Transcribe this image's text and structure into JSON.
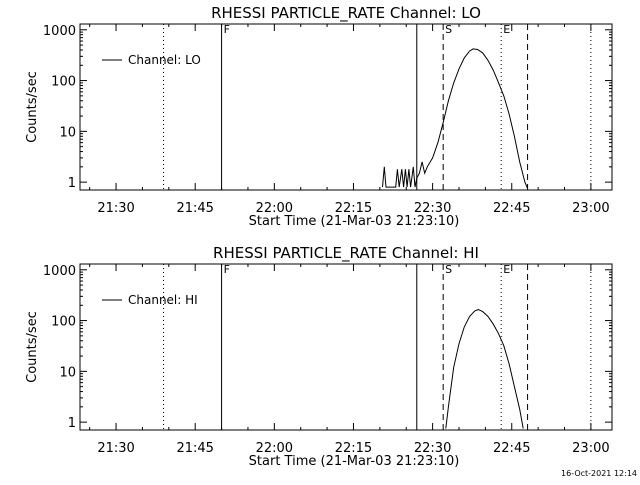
{
  "timestamp": "16-Oct-2021 12:14",
  "chart_data": [
    {
      "type": "line",
      "title": "RHESSI PARTICLE_RATE Channel: LO",
      "xlabel": "Start Time (21-Mar-03 21:23:10)",
      "ylabel": "Counts/sec",
      "x_range": [
        "21:23:10",
        "23:04:00"
      ],
      "ylim": [
        0.7,
        1300
      ],
      "y_scale": "log",
      "yticks": [
        1,
        10,
        100,
        1000
      ],
      "ytick_labels": [
        "1",
        "10",
        "100",
        "1000"
      ],
      "xticks": [
        "21:30",
        "21:45",
        "22:00",
        "22:15",
        "22:30",
        "22:45",
        "23:00"
      ],
      "legend": {
        "label": "Channel: LO",
        "position": "top-left"
      },
      "vlines": [
        {
          "time": "21:39:00",
          "style": "dotted",
          "label": ""
        },
        {
          "time": "21:50:00",
          "style": "solid",
          "label": "F"
        },
        {
          "time": "22:27:00",
          "style": "solid",
          "label": ""
        },
        {
          "time": "22:32:00",
          "style": "dashed",
          "label": "S"
        },
        {
          "time": "22:43:00",
          "style": "dotted",
          "label": "E"
        },
        {
          "time": "22:48:00",
          "style": "dashed",
          "label": ""
        },
        {
          "time": "23:00:00",
          "style": "dotted",
          "label": ""
        }
      ],
      "series": [
        {
          "name": "Channel: LO",
          "points": [
            [
              "22:20:30",
              0.8
            ],
            [
              "22:20:50",
              2.0
            ],
            [
              "22:21:10",
              0.8
            ],
            [
              "22:23:00",
              0.8
            ],
            [
              "22:23:20",
              1.8
            ],
            [
              "22:23:40",
              0.8
            ],
            [
              "22:24:10",
              1.8
            ],
            [
              "22:24:30",
              0.8
            ],
            [
              "22:24:50",
              1.8
            ],
            [
              "22:25:10",
              0.8
            ],
            [
              "22:25:30",
              1.8
            ],
            [
              "22:25:50",
              0.8
            ],
            [
              "22:26:20",
              2.0
            ],
            [
              "22:26:40",
              0.8
            ],
            [
              "22:27:00",
              1.2
            ],
            [
              "22:27:30",
              1.5
            ],
            [
              "22:28:00",
              2.5
            ],
            [
              "22:28:30",
              1.5
            ],
            [
              "22:29:00",
              2.0
            ],
            [
              "22:30:00",
              3.0
            ],
            [
              "22:31:00",
              6
            ],
            [
              "22:32:00",
              15
            ],
            [
              "22:33:00",
              40
            ],
            [
              "22:34:00",
              90
            ],
            [
              "22:35:00",
              170
            ],
            [
              "22:36:00",
              280
            ],
            [
              "22:37:00",
              380
            ],
            [
              "22:37:40",
              420
            ],
            [
              "22:38:30",
              410
            ],
            [
              "22:39:30",
              350
            ],
            [
              "22:40:30",
              250
            ],
            [
              "22:41:30",
              160
            ],
            [
              "22:42:30",
              90
            ],
            [
              "22:43:30",
              50
            ],
            [
              "22:44:30",
              22
            ],
            [
              "22:45:30",
              8
            ],
            [
              "22:46:30",
              2.5
            ],
            [
              "22:47:30",
              1.0
            ],
            [
              "22:48:00",
              0.75
            ]
          ]
        }
      ]
    },
    {
      "type": "line",
      "title": "RHESSI PARTICLE_RATE Channel: HI",
      "xlabel": "Start Time (21-Mar-03 21:23:10)",
      "ylabel": "Counts/sec",
      "x_range": [
        "21:23:10",
        "23:04:00"
      ],
      "ylim": [
        0.7,
        1300
      ],
      "y_scale": "log",
      "yticks": [
        1,
        10,
        100,
        1000
      ],
      "ytick_labels": [
        "1",
        "10",
        "100",
        "1000"
      ],
      "xticks": [
        "21:30",
        "21:45",
        "22:00",
        "22:15",
        "22:30",
        "22:45",
        "23:00"
      ],
      "legend": {
        "label": "Channel: HI",
        "position": "top-left"
      },
      "vlines": [
        {
          "time": "21:39:00",
          "style": "dotted",
          "label": ""
        },
        {
          "time": "21:50:00",
          "style": "solid",
          "label": "F"
        },
        {
          "time": "22:27:00",
          "style": "solid",
          "label": ""
        },
        {
          "time": "22:32:00",
          "style": "dashed",
          "label": "S"
        },
        {
          "time": "22:43:00",
          "style": "dotted",
          "label": "E"
        },
        {
          "time": "22:48:00",
          "style": "dashed",
          "label": ""
        },
        {
          "time": "23:00:00",
          "style": "dotted",
          "label": ""
        }
      ],
      "series": [
        {
          "name": "Channel: HI",
          "points": [
            [
              "22:32:30",
              0.75
            ],
            [
              "22:33:00",
              2.0
            ],
            [
              "22:34:00",
              12
            ],
            [
              "22:35:00",
              35
            ],
            [
              "22:36:00",
              75
            ],
            [
              "22:37:00",
              120
            ],
            [
              "22:38:00",
              155
            ],
            [
              "22:38:40",
              165
            ],
            [
              "22:39:30",
              150
            ],
            [
              "22:40:30",
              120
            ],
            [
              "22:41:30",
              85
            ],
            [
              "22:42:30",
              55
            ],
            [
              "22:43:30",
              32
            ],
            [
              "22:44:30",
              14
            ],
            [
              "22:45:30",
              5
            ],
            [
              "22:46:30",
              1.8
            ],
            [
              "22:47:10",
              0.75
            ]
          ]
        }
      ]
    }
  ]
}
